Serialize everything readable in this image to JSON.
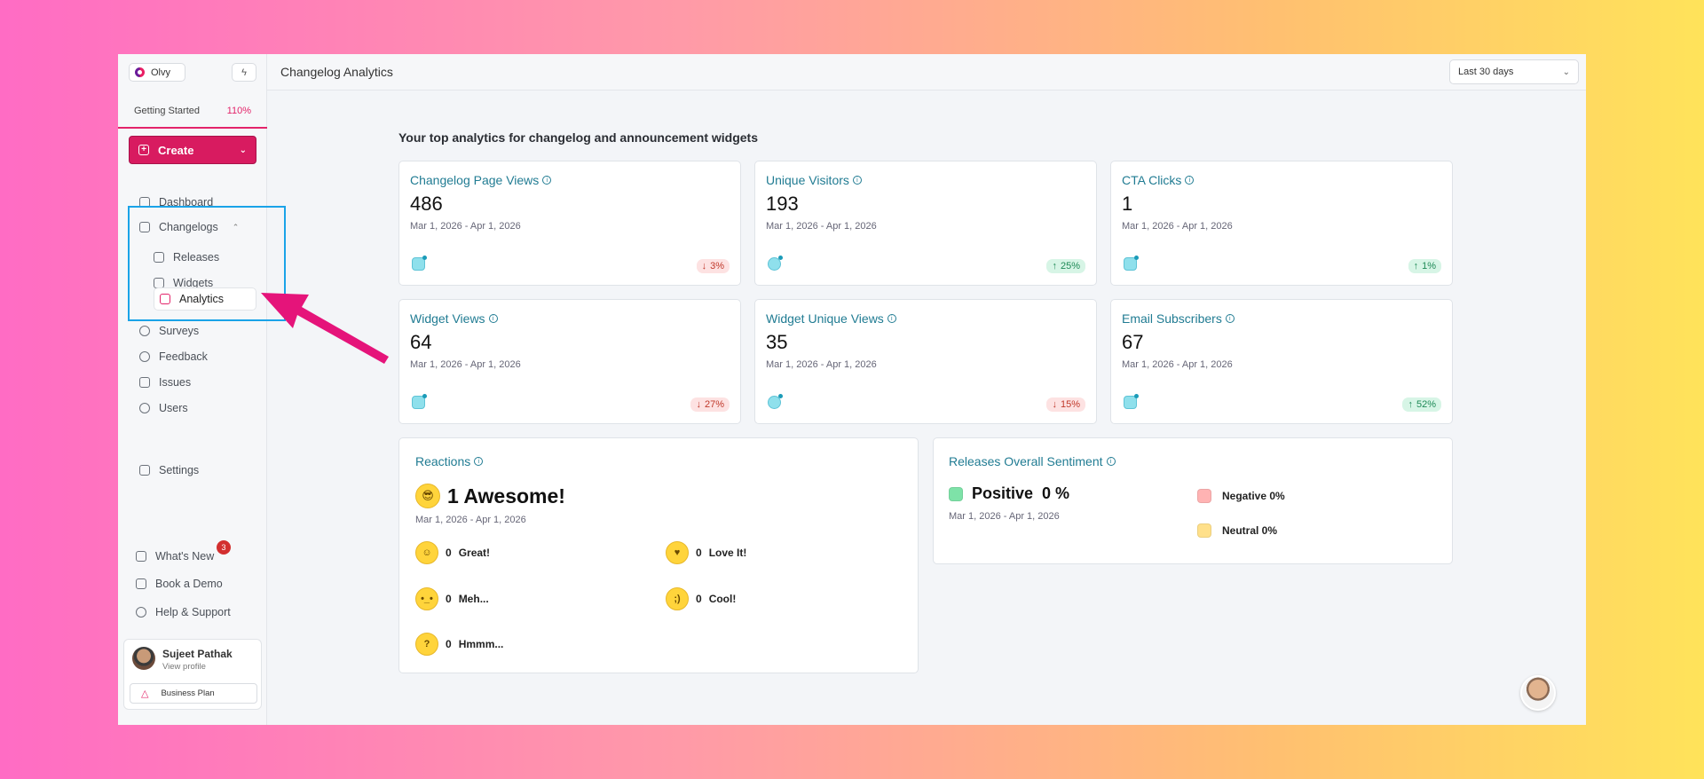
{
  "workspace": {
    "name": "Olvy"
  },
  "getting_started": {
    "label": "Getting Started",
    "percent": "110%"
  },
  "create_label": "Create",
  "nav": {
    "dashboard": "Dashboard",
    "changelogs": "Changelogs",
    "releases": "Releases",
    "widgets": "Widgets",
    "analytics": "Analytics",
    "surveys": "Surveys",
    "feedback": "Feedback",
    "issues": "Issues",
    "users": "Users",
    "settings": "Settings",
    "whats_new": "What's New",
    "whats_new_count": "3",
    "book_demo": "Book a Demo",
    "help": "Help & Support"
  },
  "profile": {
    "name": "Sujeet Pathak",
    "sub": "View profile",
    "plan": "Business Plan"
  },
  "topbar": {
    "title": "Changelog Analytics",
    "range": "Last 30 days"
  },
  "section_title": "Your top analytics for changelog and announcement widgets",
  "metrics": [
    {
      "title": "Changelog Page Views",
      "value": "486",
      "date": "Mar 1, 2026 - Apr 1, 2026",
      "trend": "3%",
      "dir": "down"
    },
    {
      "title": "Unique Visitors",
      "value": "193",
      "date": "Mar 1, 2026 - Apr 1, 2026",
      "trend": "25%",
      "dir": "up"
    },
    {
      "title": "CTA Clicks",
      "value": "1",
      "date": "Mar 1, 2026 - Apr 1, 2026",
      "trend": "1%",
      "dir": "up"
    },
    {
      "title": "Widget Views",
      "value": "64",
      "date": "Mar 1, 2026 - Apr 1, 2026",
      "trend": "27%",
      "dir": "down"
    },
    {
      "title": "Widget Unique Views",
      "value": "35",
      "date": "Mar 1, 2026 - Apr 1, 2026",
      "trend": "15%",
      "dir": "down"
    },
    {
      "title": "Email Subscribers",
      "value": "67",
      "date": "Mar 1, 2026 - Apr 1, 2026",
      "trend": "52%",
      "dir": "up"
    }
  ],
  "reactions": {
    "title": "Reactions",
    "headline": "1 Awesome!",
    "date": "Mar 1, 2026 - Apr 1, 2026",
    "items": [
      {
        "count": "0",
        "label": "Great!"
      },
      {
        "count": "0",
        "label": "Love It!"
      },
      {
        "count": "0",
        "label": "Meh..."
      },
      {
        "count": "0",
        "label": "Cool!"
      },
      {
        "count": "0",
        "label": "Hmmm..."
      }
    ]
  },
  "sentiment": {
    "title": "Releases Overall Sentiment",
    "positive": "Positive",
    "positive_pct": "0 %",
    "date": "Mar 1, 2026 - Apr 1, 2026",
    "negative": "Negative 0%",
    "neutral": "Neutral 0%"
  },
  "icons": {
    "info": "info-icon",
    "trend_up": "arrow-up-icon",
    "trend_down": "arrow-down-icon",
    "bolt": "bolt-icon",
    "chevron": "chevron-down-icon"
  },
  "colors": {
    "accent": "#d81b60",
    "link": "#217c93",
    "highlight": "#1aa3e8",
    "arrow": "#e5147a"
  }
}
